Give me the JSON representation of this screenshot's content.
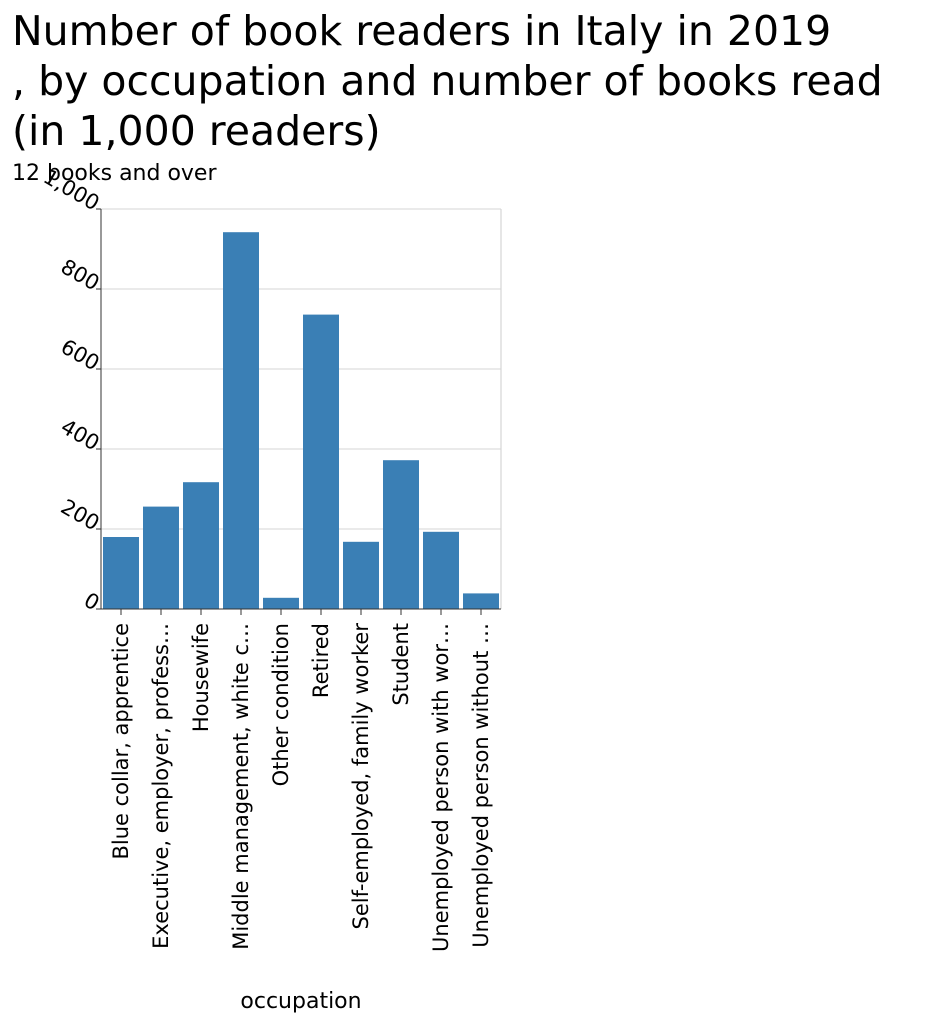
{
  "chart_data": {
    "type": "bar",
    "title_lines": [
      "Number of book readers in Italy in 2019",
      ", by occupation and number of books read",
      "(in 1,000 readers)"
    ],
    "ylabel": "12 books and over",
    "xlabel": "occupation",
    "ylim": [
      0,
      1000
    ],
    "yticks": [
      "0",
      "200",
      "400",
      "600",
      "800",
      "1,000"
    ],
    "ytick_values": [
      0,
      200,
      400,
      600,
      800,
      1000
    ],
    "categories": [
      "Blue collar, apprentice",
      "Executive, employer, profess…",
      "Housewife",
      "Middle management, white c…",
      "Other condition",
      "Retired",
      "Self-employed, family worker",
      "Student",
      "Unemployed person with wor…",
      "Unemployed person without …"
    ],
    "values": [
      180,
      256,
      317,
      942,
      28,
      736,
      168,
      372,
      193,
      39
    ],
    "bar_color": "#3a7fb5",
    "grid": true
  }
}
